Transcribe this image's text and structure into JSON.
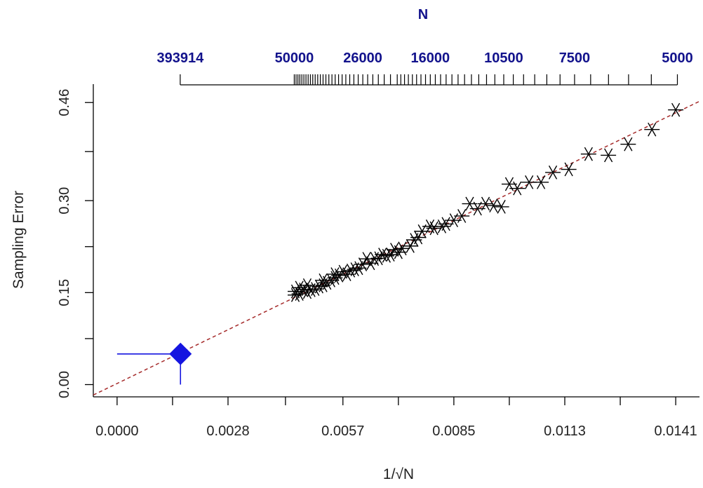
{
  "chart_data": {
    "type": "scatter",
    "title": "",
    "top_axis": {
      "label": "N",
      "tick_labels": [
        "393914",
        "50000",
        "26000",
        "16000",
        "10500",
        "7500",
        "5000"
      ],
      "tick_values": [
        393914,
        50000,
        26000,
        16000,
        10500,
        7500,
        5000
      ]
    },
    "xlabel": "1/√N",
    "ylabel": "Sampling Error",
    "x_ticks": [
      "0.0000",
      "0.0028",
      "0.0057",
      "0.0085",
      "0.0113",
      "0.0141"
    ],
    "x_tick_values": [
      0.0,
      0.0028,
      0.0057,
      0.0085,
      0.0113,
      0.0141
    ],
    "y_ticks": [
      "0.00",
      "0.15",
      "0.30",
      "0.46"
    ],
    "y_tick_values": [
      0.0,
      0.15,
      0.3,
      0.46
    ],
    "xlim": [
      -0.0006,
      0.0147
    ],
    "ylim": [
      -0.02,
      0.49
    ],
    "grid": false,
    "series": [
      {
        "marker": "asterisk",
        "color": "#000000",
        "points": [
          [
            0.0141,
            0.448
          ],
          [
            0.0135,
            0.416
          ],
          [
            0.0129,
            0.392
          ],
          [
            0.0124,
            0.374
          ],
          [
            0.0119,
            0.376
          ],
          [
            0.0114,
            0.351
          ],
          [
            0.011,
            0.346
          ],
          [
            0.0107,
            0.33
          ],
          [
            0.0104,
            0.33
          ],
          [
            0.0101,
            0.32
          ],
          [
            0.0099,
            0.327
          ],
          [
            0.0097,
            0.29
          ],
          [
            0.0095,
            0.292
          ],
          [
            0.0093,
            0.295
          ],
          [
            0.0091,
            0.287
          ],
          [
            0.0089,
            0.295
          ],
          [
            0.0087,
            0.275
          ],
          [
            0.0085,
            0.268
          ],
          [
            0.0083,
            0.262
          ],
          [
            0.0082,
            0.258
          ],
          [
            0.008,
            0.255
          ],
          [
            0.0079,
            0.258
          ],
          [
            0.0077,
            0.25
          ],
          [
            0.0076,
            0.24
          ],
          [
            0.0075,
            0.236
          ],
          [
            0.0074,
            0.226
          ],
          [
            0.0072,
            0.222
          ],
          [
            0.0071,
            0.216
          ],
          [
            0.007,
            0.22
          ],
          [
            0.0069,
            0.212
          ],
          [
            0.0068,
            0.21
          ],
          [
            0.0067,
            0.212
          ],
          [
            0.0066,
            0.206
          ],
          [
            0.0065,
            0.205
          ],
          [
            0.0064,
            0.198
          ],
          [
            0.0063,
            0.205
          ],
          [
            0.0062,
            0.196
          ],
          [
            0.0061,
            0.19
          ],
          [
            0.006,
            0.188
          ],
          [
            0.0059,
            0.186
          ],
          [
            0.0058,
            0.18
          ],
          [
            0.0057,
            0.184
          ],
          [
            0.0056,
            0.178
          ],
          [
            0.0055,
            0.174
          ],
          [
            0.0054,
            0.17
          ],
          [
            0.0053,
            0.166
          ],
          [
            0.0052,
            0.162
          ],
          [
            0.0051,
            0.16
          ],
          [
            0.005,
            0.156
          ],
          [
            0.0049,
            0.154
          ],
          [
            0.0048,
            0.151
          ],
          [
            0.0047,
            0.155
          ],
          [
            0.0046,
            0.148
          ],
          [
            0.0045,
            0.152
          ],
          [
            0.0045,
            0.146
          ],
          [
            0.0046,
            0.158
          ],
          [
            0.0048,
            0.162
          ],
          [
            0.0052,
            0.17
          ],
          [
            0.0055,
            0.18
          ]
        ]
      },
      {
        "marker": "diamond",
        "color": "#1515e0",
        "points": [
          [
            0.0016,
            0.05
          ]
        ],
        "error_x": [
          0.0,
          0.0016
        ],
        "error_y": [
          0.0,
          0.05
        ]
      }
    ],
    "fit_line": {
      "style": "dashed",
      "color": "#a52a2a",
      "x": [
        -0.0006,
        0.0147
      ],
      "y": [
        -0.017,
        0.462
      ]
    }
  }
}
